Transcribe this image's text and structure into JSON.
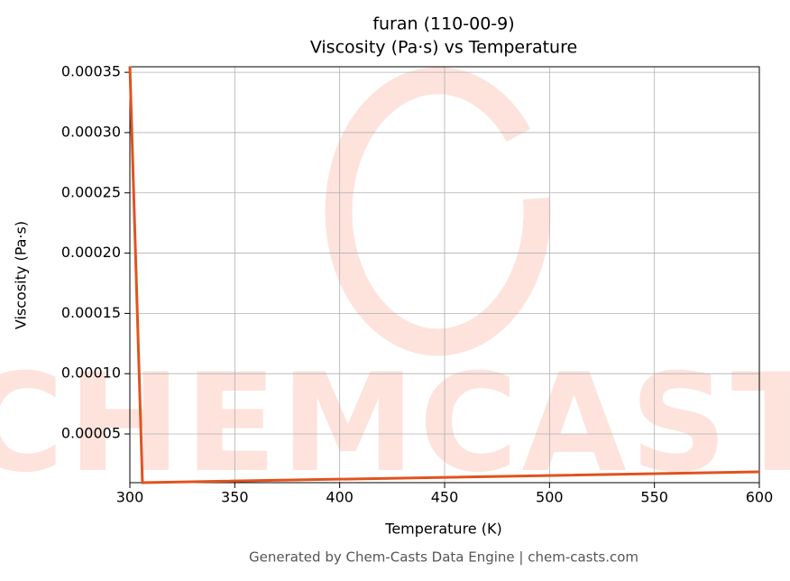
{
  "chart_data": {
    "type": "line",
    "title": "furan (110-00-9)",
    "subtitle": "Viscosity (Pa·s) vs Temperature",
    "x_label": "Temperature (K)",
    "y_label": "Viscosity (Pa·s)",
    "footer": "Generated by Chem-Casts Data Engine | chem-casts.com",
    "watermark": "CHEMCASTS",
    "x": [
      300,
      306,
      600
    ],
    "series": [
      {
        "name": "Viscosity",
        "color": "#e0531f",
        "values": [
          0.000355,
          9.6e-06,
          1.86e-05
        ]
      }
    ],
    "xlim": [
      300,
      600
    ],
    "ylim": [
      9.6e-06,
      0.0003546
    ],
    "xticks": [
      300,
      350,
      400,
      450,
      500,
      550,
      600
    ],
    "yticks": [
      5e-05,
      {
        "value": 0.0001,
        "label": "0.00010"
      },
      0.00015,
      {
        "value": 0.0002,
        "label": "0.00020"
      },
      0.00025,
      {
        "value": 0.0003,
        "label": "0.00030"
      },
      0.00035
    ],
    "grid": true
  }
}
